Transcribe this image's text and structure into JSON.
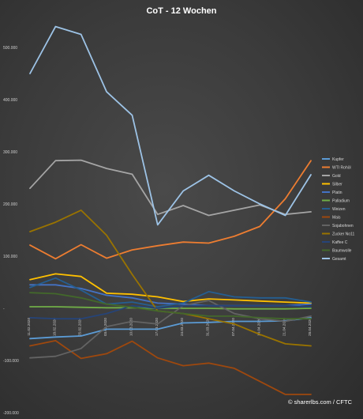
{
  "chart_data": {
    "type": "line",
    "title": "CoT - 12 Wochen",
    "xlabel": "",
    "ylabel": "",
    "ylim": [
      -200000,
      500000
    ],
    "yticks": [
      -200000,
      -100000,
      0,
      100000,
      200000,
      300000,
      400000,
      500000
    ],
    "ytick_labels": [
      "-200.000",
      "-100.000",
      "-",
      "100.000",
      "200.000",
      "300.000",
      "400.000",
      "500.000"
    ],
    "grid": false,
    "legend": "right",
    "categories": [
      "11.02.2020",
      "18.02.2020",
      "25.02.2020",
      "03.03.2020",
      "10.03.2020",
      "17.03.2020",
      "24.03.2020",
      "31.03.2020",
      "07.04.2020",
      "14.04.2020",
      "21.04.2020",
      "28.04.2020"
    ],
    "series": [
      {
        "name": "Kupfer",
        "color": "#5b9bd5",
        "values": [
          -58000,
          -55000,
          -53000,
          -40000,
          -40000,
          -40000,
          -28000,
          -27000,
          -25000,
          -25000,
          -24000,
          -18000
        ]
      },
      {
        "name": "WTI Rohöl",
        "color": "#ed7d31",
        "values": [
          121000,
          95000,
          122000,
          96000,
          112000,
          120000,
          127000,
          125000,
          138000,
          157000,
          210000,
          283000
        ]
      },
      {
        "name": "Gold",
        "color": "#a5a5a5",
        "values": [
          230000,
          283000,
          284000,
          268000,
          257000,
          180000,
          197000,
          178000,
          188000,
          198000,
          180000,
          185000
        ]
      },
      {
        "name": "Silber",
        "color": "#ffc000",
        "values": [
          55000,
          66000,
          61000,
          29000,
          27000,
          22000,
          13000,
          18000,
          16000,
          14000,
          12000,
          10000
        ]
      },
      {
        "name": "Platin",
        "color": "#4472c4",
        "values": [
          45000,
          45000,
          38000,
          25000,
          20000,
          10000,
          8000,
          5000,
          5000,
          5000,
          5000,
          8000
        ]
      },
      {
        "name": "Palladium",
        "color": "#70ad47",
        "values": [
          3000,
          3000,
          2000,
          1000,
          1000,
          0,
          0,
          0,
          -1000,
          -1000,
          -1000,
          0
        ]
      },
      {
        "name": "Weizen",
        "color": "#255e91",
        "values": [
          40000,
          58000,
          35000,
          8000,
          12000,
          3000,
          10000,
          32000,
          22000,
          20000,
          20000,
          12000
        ]
      },
      {
        "name": "Mais",
        "color": "#9e480e",
        "values": [
          -72000,
          -62000,
          -96000,
          -87000,
          -63000,
          -95000,
          -110000,
          -105000,
          -115000,
          -140000,
          -165000,
          -165000
        ]
      },
      {
        "name": "Sojabohnen",
        "color": "#636363",
        "values": [
          -95000,
          -92000,
          -77000,
          -35000,
          -25000,
          -30000,
          5000,
          15000,
          -10000,
          -20000,
          -25000,
          -15000
        ]
      },
      {
        "name": "Zucker No11",
        "color": "#997300",
        "values": [
          147000,
          165000,
          188000,
          140000,
          65000,
          -5000,
          -10000,
          -20000,
          -30000,
          -50000,
          -68000,
          -72000
        ]
      },
      {
        "name": "Kaffee C",
        "color": "#264478",
        "values": [
          -18000,
          -20000,
          -20000,
          -10000,
          5000,
          0,
          5000,
          5000,
          5000,
          5000,
          5000,
          3000
        ]
      },
      {
        "name": "Baumwolle",
        "color": "#43682b",
        "values": [
          30000,
          28000,
          20000,
          8000,
          2000,
          -5000,
          -10000,
          -15000,
          -15000,
          -18000,
          -20000,
          -20000
        ]
      },
      {
        "name": "Gesamt",
        "color": "#9dc3e6",
        "values": [
          450000,
          540000,
          525000,
          415000,
          370000,
          160000,
          225000,
          255000,
          225000,
          200000,
          178000,
          256000
        ]
      }
    ]
  },
  "credit": "© sharerlbs.com / CFTC"
}
